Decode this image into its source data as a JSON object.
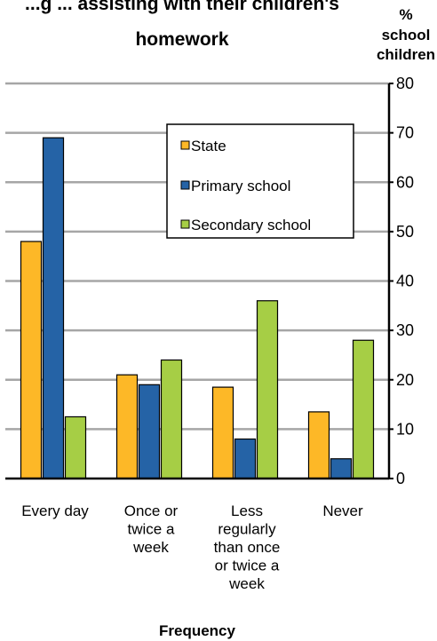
{
  "chart_data": {
    "type": "bar",
    "title_lines": [
      "...g ... assisting with their children's",
      "homework"
    ],
    "ylabel_lines": [
      "%",
      "school",
      "children"
    ],
    "xlabel": "Frequency",
    "categories": [
      [
        "Every day"
      ],
      [
        "Once or",
        "twice a",
        "week"
      ],
      [
        "Less",
        "regularly",
        "than once",
        "or twice a",
        "week"
      ],
      [
        "Never"
      ]
    ],
    "series": [
      {
        "name": "State",
        "color": "#FDB827",
        "values": [
          48,
          21,
          18.5,
          13.5
        ]
      },
      {
        "name": "Primary school",
        "color": "#2563A6",
        "values": [
          69,
          19,
          8,
          4
        ]
      },
      {
        "name": "Secondary school",
        "color": "#A6CE45",
        "values": [
          12.5,
          24,
          36,
          28
        ]
      }
    ],
    "ylim": [
      0,
      80
    ],
    "yticks": [
      "0",
      "10",
      "20",
      "30",
      "40",
      "50",
      "60",
      "70",
      "80"
    ],
    "grid": true,
    "y_axis_side": "right",
    "legend_position": "top-right"
  }
}
